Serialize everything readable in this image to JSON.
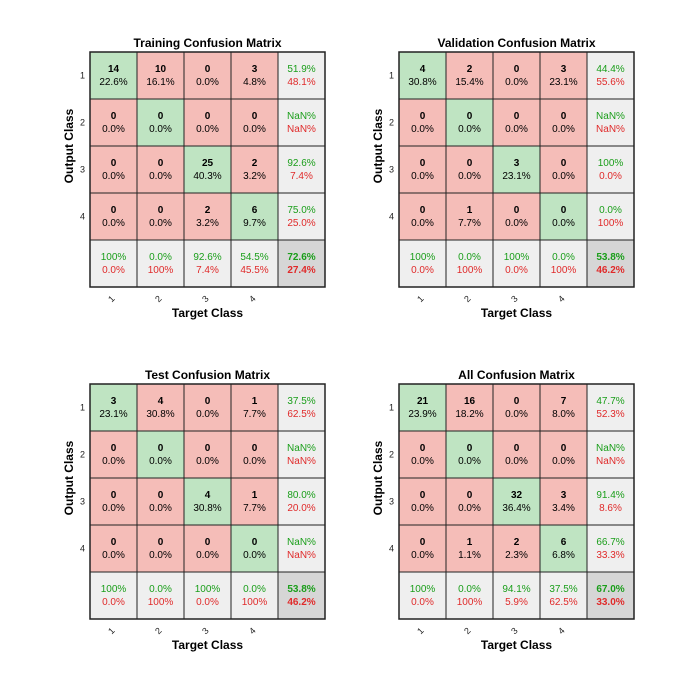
{
  "colors": {
    "correct": "#bfe4c2",
    "wrong": "#f5bdb8",
    "summary": "#efefef",
    "total": "#d6d6d6",
    "border": "#222222",
    "good_text": "#1a9e1a",
    "bad_text": "#e02a2a"
  },
  "chart_data": [
    {
      "type": "table",
      "title": "Training Confusion Matrix",
      "xlabel": "Target Class",
      "ylabel": "Output Class",
      "classes": [
        "1",
        "2",
        "3",
        "4"
      ],
      "counts": [
        [
          14,
          10,
          0,
          3
        ],
        [
          0,
          0,
          0,
          0
        ],
        [
          0,
          0,
          25,
          2
        ],
        [
          0,
          0,
          2,
          6
        ]
      ],
      "percents": [
        [
          "22.6%",
          "16.1%",
          "0.0%",
          "4.8%"
        ],
        [
          "0.0%",
          "0.0%",
          "0.0%",
          "0.0%"
        ],
        [
          "0.0%",
          "0.0%",
          "40.3%",
          "3.2%"
        ],
        [
          "0.0%",
          "0.0%",
          "3.2%",
          "9.7%"
        ]
      ],
      "row_summary": [
        [
          "51.9%",
          "48.1%"
        ],
        [
          "NaN%",
          "NaN%"
        ],
        [
          "92.6%",
          "7.4%"
        ],
        [
          "75.0%",
          "25.0%"
        ]
      ],
      "col_summary": [
        [
          "100%",
          "0.0%"
        ],
        [
          "0.0%",
          "100%"
        ],
        [
          "92.6%",
          "7.4%"
        ],
        [
          "54.5%",
          "45.5%"
        ]
      ],
      "total": [
        "72.6%",
        "27.4%"
      ]
    },
    {
      "type": "table",
      "title": "Validation Confusion Matrix",
      "xlabel": "Target Class",
      "ylabel": "Output Class",
      "classes": [
        "1",
        "2",
        "3",
        "4"
      ],
      "counts": [
        [
          4,
          2,
          0,
          3
        ],
        [
          0,
          0,
          0,
          0
        ],
        [
          0,
          0,
          3,
          0
        ],
        [
          0,
          1,
          0,
          0
        ]
      ],
      "percents": [
        [
          "30.8%",
          "15.4%",
          "0.0%",
          "23.1%"
        ],
        [
          "0.0%",
          "0.0%",
          "0.0%",
          "0.0%"
        ],
        [
          "0.0%",
          "0.0%",
          "23.1%",
          "0.0%"
        ],
        [
          "0.0%",
          "7.7%",
          "0.0%",
          "0.0%"
        ]
      ],
      "row_summary": [
        [
          "44.4%",
          "55.6%"
        ],
        [
          "NaN%",
          "NaN%"
        ],
        [
          "100%",
          "0.0%"
        ],
        [
          "0.0%",
          "100%"
        ]
      ],
      "col_summary": [
        [
          "100%",
          "0.0%"
        ],
        [
          "0.0%",
          "100%"
        ],
        [
          "100%",
          "0.0%"
        ],
        [
          "0.0%",
          "100%"
        ]
      ],
      "total": [
        "53.8%",
        "46.2%"
      ]
    },
    {
      "type": "table",
      "title": "Test Confusion Matrix",
      "xlabel": "Target Class",
      "ylabel": "Output Class",
      "classes": [
        "1",
        "2",
        "3",
        "4"
      ],
      "counts": [
        [
          3,
          4,
          0,
          1
        ],
        [
          0,
          0,
          0,
          0
        ],
        [
          0,
          0,
          4,
          1
        ],
        [
          0,
          0,
          0,
          0
        ]
      ],
      "percents": [
        [
          "23.1%",
          "30.8%",
          "0.0%",
          "7.7%"
        ],
        [
          "0.0%",
          "0.0%",
          "0.0%",
          "0.0%"
        ],
        [
          "0.0%",
          "0.0%",
          "30.8%",
          "7.7%"
        ],
        [
          "0.0%",
          "0.0%",
          "0.0%",
          "0.0%"
        ]
      ],
      "row_summary": [
        [
          "37.5%",
          "62.5%"
        ],
        [
          "NaN%",
          "NaN%"
        ],
        [
          "80.0%",
          "20.0%"
        ],
        [
          "NaN%",
          "NaN%"
        ]
      ],
      "col_summary": [
        [
          "100%",
          "0.0%"
        ],
        [
          "0.0%",
          "100%"
        ],
        [
          "100%",
          "0.0%"
        ],
        [
          "0.0%",
          "100%"
        ]
      ],
      "total": [
        "53.8%",
        "46.2%"
      ]
    },
    {
      "type": "table",
      "title": "All Confusion Matrix",
      "xlabel": "Target Class",
      "ylabel": "Output Class",
      "classes": [
        "1",
        "2",
        "3",
        "4"
      ],
      "counts": [
        [
          21,
          16,
          0,
          7
        ],
        [
          0,
          0,
          0,
          0
        ],
        [
          0,
          0,
          32,
          3
        ],
        [
          0,
          1,
          2,
          6
        ]
      ],
      "percents": [
        [
          "23.9%",
          "18.2%",
          "0.0%",
          "8.0%"
        ],
        [
          "0.0%",
          "0.0%",
          "0.0%",
          "0.0%"
        ],
        [
          "0.0%",
          "0.0%",
          "36.4%",
          "3.4%"
        ],
        [
          "0.0%",
          "1.1%",
          "2.3%",
          "6.8%"
        ]
      ],
      "row_summary": [
        [
          "47.7%",
          "52.3%"
        ],
        [
          "NaN%",
          "NaN%"
        ],
        [
          "91.4%",
          "8.6%"
        ],
        [
          "66.7%",
          "33.3%"
        ]
      ],
      "col_summary": [
        [
          "100%",
          "0.0%"
        ],
        [
          "0.0%",
          "100%"
        ],
        [
          "94.1%",
          "5.9%"
        ],
        [
          "37.5%",
          "62.5%"
        ]
      ],
      "total": [
        "67.0%",
        "33.0%"
      ]
    }
  ]
}
